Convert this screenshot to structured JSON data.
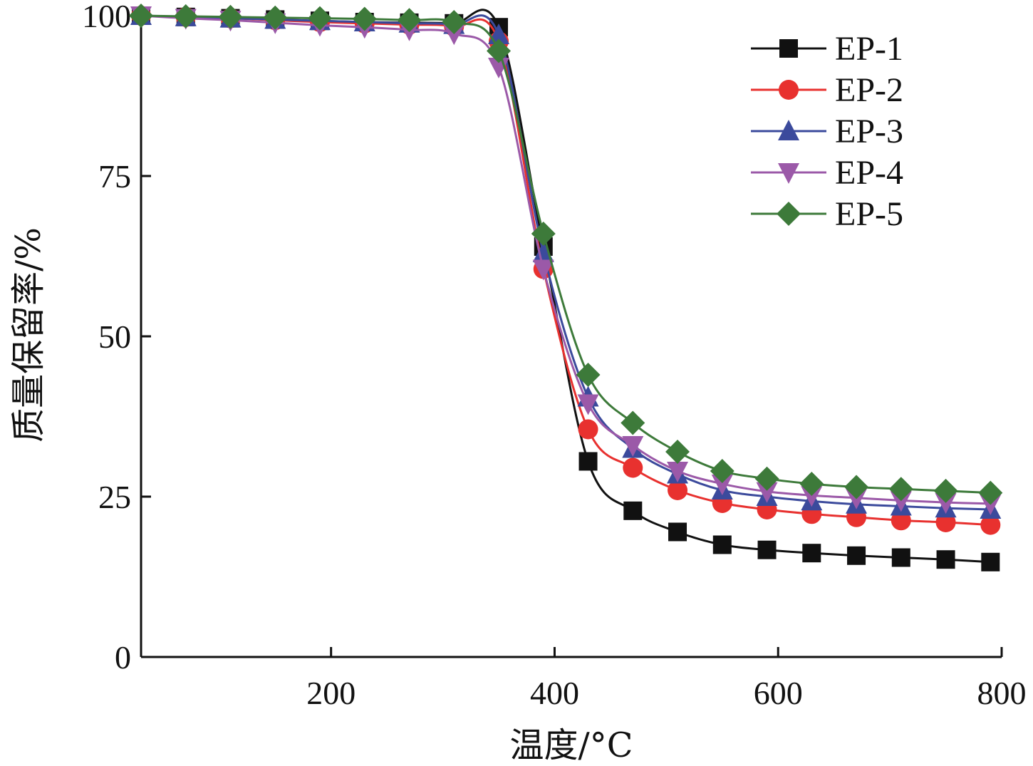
{
  "chart_data": {
    "type": "line",
    "xlabel": "温度/°C",
    "ylabel": "质量保留率/%",
    "xlim": [
      30,
      800
    ],
    "ylim": [
      0,
      100
    ],
    "xticks": [
      200,
      400,
      600,
      800
    ],
    "yticks": [
      0,
      25,
      50,
      75,
      100
    ],
    "grid": false,
    "legend_position": "top-right",
    "x": [
      30,
      70,
      110,
      150,
      190,
      230,
      270,
      310,
      350,
      390,
      430,
      470,
      510,
      550,
      590,
      630,
      670,
      710,
      750,
      790
    ],
    "series": [
      {
        "name": "EP-1",
        "color": "#111111",
        "marker": "square",
        "values": [
          100,
          99.8,
          99.6,
          99.4,
          99.2,
          99.0,
          98.9,
          98.8,
          98.2,
          64,
          30.5,
          22.8,
          19.5,
          17.5,
          16.7,
          16.2,
          15.8,
          15.5,
          15.2,
          14.8
        ]
      },
      {
        "name": "EP-2",
        "color": "#e8312f",
        "marker": "circle",
        "values": [
          100,
          99.8,
          99.6,
          99.3,
          99.0,
          98.8,
          98.6,
          98.3,
          96.0,
          60.5,
          35.5,
          29.5,
          26.0,
          24.0,
          23.0,
          22.3,
          21.8,
          21.3,
          21.0,
          20.6
        ]
      },
      {
        "name": "EP-3",
        "color": "#3b4a9c",
        "marker": "triangle-up",
        "values": [
          100,
          99.8,
          99.6,
          99.4,
          99.2,
          99.0,
          98.8,
          98.6,
          97.0,
          63,
          40.5,
          32.5,
          28.5,
          26.0,
          25.0,
          24.3,
          23.8,
          23.5,
          23.2,
          23.0
        ]
      },
      {
        "name": "EP-4",
        "color": "#9b59a8",
        "marker": "triangle-down",
        "values": [
          100,
          99.6,
          99.3,
          98.9,
          98.5,
          98.2,
          97.8,
          97.2,
          92.0,
          60.5,
          39.5,
          33.0,
          29.0,
          27.0,
          25.8,
          25.2,
          24.8,
          24.4,
          24.1,
          23.9
        ]
      },
      {
        "name": "EP-5",
        "color": "#3d7a3a",
        "marker": "diamond",
        "values": [
          100,
          99.9,
          99.8,
          99.7,
          99.6,
          99.5,
          99.3,
          99.0,
          94.5,
          66.0,
          44.0,
          36.5,
          32.0,
          29.0,
          27.8,
          27.0,
          26.5,
          26.2,
          25.9,
          25.6
        ]
      }
    ]
  }
}
